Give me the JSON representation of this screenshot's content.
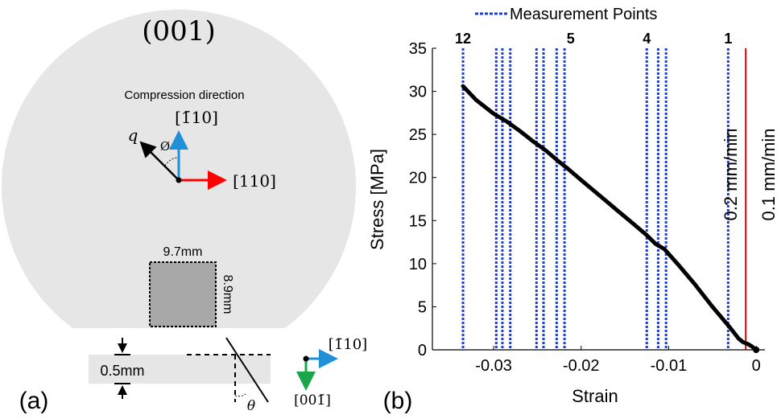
{
  "panel_a": {
    "panel_label": "(a)",
    "plane_label": "(001)",
    "compression_label": "Compression direction",
    "dir_up_label": "[1̄10]",
    "dir_right_label": "[110]",
    "q_label": "q",
    "phi_label": "Ø",
    "sample_width_label": "9.7mm",
    "sample_height_label": "8.9mm",
    "thickness_label": "0.5mm",
    "theta_label": "θ",
    "axis_right_label": "[1̄10]",
    "axis_down_label": "[001̄]",
    "colors": {
      "wafer": "#e6e6e6",
      "sample": "#a8a8a8",
      "red": "#ff0000",
      "blue": "#1f8fd8",
      "green": "#1aa64a"
    }
  },
  "panel_b": {
    "panel_label": "(b)",
    "legend_label": "Measurement Points",
    "rate_label_1": "0.2 mm/min",
    "rate_label_2": "0.1 mm/min",
    "point_labels": [
      {
        "text": "12",
        "x": -0.0335
      },
      {
        "text": "5",
        "x": -0.0212
      },
      {
        "text": "4",
        "x": -0.0125
      },
      {
        "text": "1",
        "x": -0.0032
      }
    ]
  },
  "chart_data": {
    "type": "line",
    "xlabel": "Strain",
    "ylabel": "Stress [MPa]",
    "xlim": [
      -0.037,
      0.001
    ],
    "ylim": [
      0,
      35
    ],
    "xticks": [
      -0.03,
      -0.02,
      -0.01,
      0
    ],
    "xtick_labels": [
      "-0.03",
      "-0.02",
      "-0.01",
      "0"
    ],
    "yticks": [
      0,
      5,
      10,
      15,
      20,
      25,
      30,
      35
    ],
    "ytick_labels": [
      "0",
      "5",
      "10",
      "15",
      "20",
      "25",
      "30",
      "35"
    ],
    "series": [
      {
        "color": "#000000",
        "x": [
          0,
          -0.0005,
          -0.001,
          -0.0015,
          -0.002,
          -0.003,
          -0.004,
          -0.005,
          -0.006,
          -0.007,
          -0.008,
          -0.009,
          -0.0105,
          -0.0115,
          -0.0125,
          -0.014,
          -0.016,
          -0.018,
          -0.02,
          -0.0215,
          -0.0225,
          -0.024,
          -0.0255,
          -0.027,
          -0.0285,
          -0.03,
          -0.032,
          -0.0335
        ],
        "y": [
          0,
          0.4,
          0.7,
          0.9,
          1.3,
          2.6,
          3.8,
          5.0,
          6.3,
          7.6,
          8.8,
          10.0,
          11.7,
          12.3,
          13.3,
          14.6,
          16.3,
          18.0,
          19.7,
          21.0,
          21.8,
          23.1,
          24.2,
          25.4,
          26.5,
          27.4,
          29.0,
          30.6
        ]
      }
    ],
    "measurement_points_x": [
      -0.0335,
      -0.0297,
      -0.029,
      -0.0281,
      -0.0251,
      -0.0243,
      -0.0228,
      -0.0219,
      -0.0125,
      -0.0112,
      -0.0103,
      -0.0032
    ],
    "red_line_x": -0.0012,
    "legend": "top"
  }
}
